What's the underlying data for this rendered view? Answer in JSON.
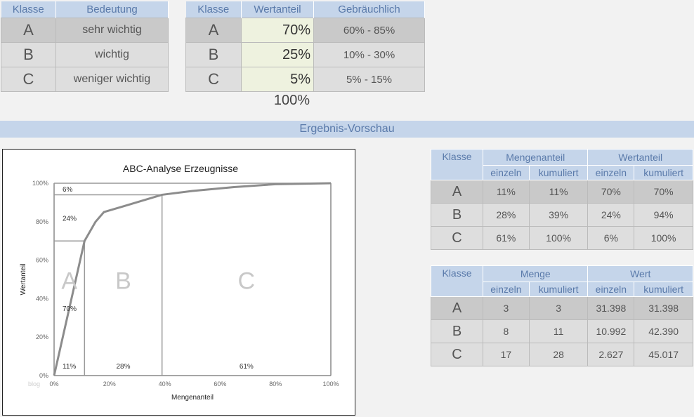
{
  "class_table": {
    "headers": [
      "Klasse",
      "Bedeutung"
    ],
    "rows": [
      {
        "klasse": "A",
        "bedeutung": "sehr wichtig"
      },
      {
        "klasse": "B",
        "bedeutung": "wichtig"
      },
      {
        "klasse": "C",
        "bedeutung": "weniger wichtig"
      }
    ]
  },
  "value_table": {
    "headers": [
      "Klasse",
      "Wertanteil",
      "Gebräuchlich"
    ],
    "rows": [
      {
        "klasse": "A",
        "wertanteil": "70%",
        "gebraeuchlich": "60%  - 85%"
      },
      {
        "klasse": "B",
        "wertanteil": "25%",
        "gebraeuchlich": "10%  - 30%"
      },
      {
        "klasse": "C",
        "wertanteil": "5%",
        "gebraeuchlich": "5%  - 15%"
      }
    ],
    "total": "100%"
  },
  "banner": "Ergebnis-Vorschau",
  "chart_data": {
    "type": "line",
    "title": "ABC-Analyse Erzeugnisse",
    "xlabel": "Mengenanteil",
    "ylabel": "Wertanteil",
    "xlim": [
      0,
      100
    ],
    "ylim": [
      0,
      100
    ],
    "x_ticks": [
      "0%",
      "20%",
      "40%",
      "60%",
      "80%",
      "100%"
    ],
    "y_ticks": [
      "0%",
      "20%",
      "40%",
      "60%",
      "80%",
      "100%"
    ],
    "series": [
      {
        "x": [
          0,
          11,
          15,
          18,
          25,
          32,
          39,
          50,
          65,
          80,
          100
        ],
        "y": [
          0,
          70,
          80,
          85,
          88,
          91,
          94,
          96,
          98,
          99.5,
          100
        ]
      }
    ],
    "class_lines": [
      {
        "x": 11,
        "y": 70
      },
      {
        "x": 39,
        "y": 94
      }
    ],
    "region_labels": [
      "A",
      "B",
      "C"
    ],
    "x_segment_labels": [
      "11%",
      "28%",
      "61%"
    ],
    "y_segment_labels": [
      "70%",
      "24%",
      "6%"
    ],
    "watermark": "blog",
    "colors": {
      "curve": "#8c8c8c",
      "region_text": "#c8c8c8"
    }
  },
  "anteil_table": {
    "klasse_label": "Klasse",
    "group1": "Mengenanteil",
    "group2": "Wertanteil",
    "sub": [
      "einzeln",
      "kumuliert",
      "einzeln",
      "kumuliert"
    ],
    "rows": [
      {
        "k": "A",
        "c": [
          "11%",
          "11%",
          "70%",
          "70%"
        ]
      },
      {
        "k": "B",
        "c": [
          "28%",
          "39%",
          "24%",
          "94%"
        ]
      },
      {
        "k": "C",
        "c": [
          "61%",
          "100%",
          "6%",
          "100%"
        ]
      }
    ]
  },
  "menge_table": {
    "klasse_label": "Klasse",
    "group1": "Menge",
    "group2": "Wert",
    "sub": [
      "einzeln",
      "kumuliert",
      "einzeln",
      "kumuliert"
    ],
    "rows": [
      {
        "k": "A",
        "c": [
          "3",
          "3",
          "31.398",
          "31.398"
        ]
      },
      {
        "k": "B",
        "c": [
          "8",
          "11",
          "10.992",
          "42.390"
        ]
      },
      {
        "k": "C",
        "c": [
          "17",
          "28",
          "2.627",
          "45.017"
        ]
      }
    ]
  }
}
